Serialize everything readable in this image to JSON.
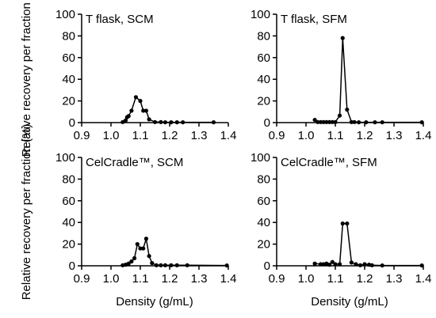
{
  "figure": {
    "ylabel": "Relative recovery per fraction (%)",
    "xlabel": "Density (g/mL)"
  },
  "chart_data": [
    {
      "type": "line",
      "title": "T flask, SCM",
      "xlabel": "",
      "ylabel": "Relative recovery per fraction (%)",
      "xlim": [
        0.9,
        1.4
      ],
      "ylim": [
        0,
        100
      ],
      "xticks": [
        "0.9",
        "1.0",
        "1.1",
        "1.2",
        "1.3",
        "1.4"
      ],
      "yticks": [
        "0",
        "20",
        "40",
        "60",
        "80",
        "100"
      ],
      "grid": false,
      "x": [
        1.04,
        1.05,
        1.055,
        1.06,
        1.07,
        1.085,
        1.1,
        1.11,
        1.12,
        1.13,
        1.15,
        1.17,
        1.185,
        1.205,
        1.225,
        1.245,
        1.35
      ],
      "y": [
        0.5,
        2,
        5,
        6,
        11,
        23.5,
        20,
        11,
        11,
        3,
        0.5,
        0.5,
        0.3,
        0.3,
        0.3,
        0.3,
        0.3
      ]
    },
    {
      "type": "line",
      "title": "T flask, SFM",
      "xlabel": "",
      "ylabel": "",
      "xlim": [
        0.9,
        1.4
      ],
      "ylim": [
        0,
        100
      ],
      "xticks": [
        "0.9",
        "1.0",
        "1.1",
        "1.2",
        "1.3",
        "1.4"
      ],
      "yticks": [
        "0",
        "20",
        "40",
        "60",
        "80",
        "100"
      ],
      "grid": false,
      "x": [
        1.03,
        1.04,
        1.05,
        1.06,
        1.07,
        1.08,
        1.09,
        1.1,
        1.115,
        1.125,
        1.14,
        1.155,
        1.165,
        1.18,
        1.205,
        1.235,
        1.26,
        1.395
      ],
      "y": [
        2.5,
        0.5,
        0.5,
        0.5,
        0.5,
        0.5,
        0.5,
        0.5,
        6.5,
        78,
        12,
        0.5,
        0.5,
        0.3,
        0.3,
        0.3,
        0.3,
        0.3
      ]
    },
    {
      "type": "line",
      "title": "CelCradle™, SCM",
      "xlabel": "Density (g/mL)",
      "ylabel": "Relative recovery per fraction (%)",
      "xlim": [
        0.9,
        1.4
      ],
      "ylim": [
        0,
        100
      ],
      "xticks": [
        "0.9",
        "1.0",
        "1.1",
        "1.2",
        "1.3",
        "1.4"
      ],
      "yticks": [
        "0",
        "20",
        "40",
        "60",
        "80",
        "100"
      ],
      "grid": false,
      "x": [
        1.04,
        1.05,
        1.06,
        1.07,
        1.08,
        1.09,
        1.1,
        1.11,
        1.12,
        1.13,
        1.14,
        1.155,
        1.17,
        1.185,
        1.205,
        1.225,
        1.26,
        1.395
      ],
      "y": [
        0.5,
        1,
        2,
        4,
        7,
        20,
        16,
        16,
        25,
        9,
        2.5,
        0.5,
        0.5,
        0.5,
        0.5,
        0.5,
        0.5,
        0.3
      ]
    },
    {
      "type": "line",
      "title": "CelCradle™, SFM",
      "xlabel": "Density (g/mL)",
      "ylabel": "",
      "xlim": [
        0.9,
        1.4
      ],
      "ylim": [
        0,
        100
      ],
      "xticks": [
        "0.9",
        "1.0",
        "1.1",
        "1.2",
        "1.3",
        "1.4"
      ],
      "yticks": [
        "0",
        "20",
        "40",
        "60",
        "80",
        "100"
      ],
      "grid": false,
      "x": [
        1.03,
        1.05,
        1.06,
        1.07,
        1.08,
        1.09,
        1.1,
        1.115,
        1.125,
        1.14,
        1.155,
        1.17,
        1.185,
        1.2,
        1.215,
        1.225,
        1.26,
        1.395
      ],
      "y": [
        2,
        1.5,
        1.5,
        2,
        1,
        3.5,
        1.5,
        1.5,
        39,
        39,
        3,
        1.5,
        0.5,
        1.5,
        1,
        0.5,
        0.3,
        0.3
      ]
    }
  ]
}
